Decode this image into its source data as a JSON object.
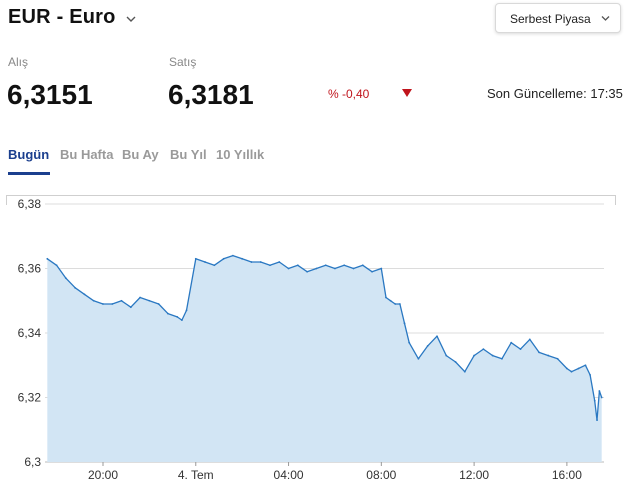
{
  "header": {
    "title": "EUR - Euro",
    "market_selector": "Serbest Piyasa"
  },
  "quote": {
    "buy_label": "Alış",
    "buy_value": "6,3151",
    "sell_label": "Satış",
    "sell_value": "6,3181",
    "change": "% -0,40",
    "direction": "down",
    "updated": "Son Güncelleme: 17:35"
  },
  "tabs": [
    "Bugün",
    "Bu Hafta",
    "Bu Ay",
    "Bu Yıl",
    "10 Yıllık"
  ],
  "active_tab": "Bugün",
  "colors": {
    "accent": "#1b3f8e",
    "line": "#2a78c2",
    "fill": "#d2e5f4",
    "negative": "#c0141c"
  },
  "chart_data": {
    "type": "area",
    "title": "",
    "xlabel": "",
    "ylabel": "",
    "ylim": [
      6.3,
      6.38
    ],
    "yticks": [
      6.38,
      6.36,
      6.34,
      6.32,
      6.3
    ],
    "ytick_labels": [
      "6,38",
      "6,36",
      "6,34",
      "6,32",
      "6,3"
    ],
    "xtick_labels": [
      "20:00",
      "4. Tem",
      "04:00",
      "08:00",
      "12:00",
      "16:00"
    ],
    "xtick_hours": [
      20,
      24,
      28,
      32,
      36,
      40
    ],
    "xlim_hours": [
      17.5,
      41.6
    ],
    "grid": true,
    "series": [
      {
        "x": [
          17.6,
          18.0,
          18.4,
          18.8,
          19.2,
          19.6,
          20.0,
          20.4,
          20.8,
          21.2,
          21.6,
          22.0,
          22.4,
          22.8,
          23.2,
          23.4,
          23.6,
          24.0,
          24.4,
          24.8,
          25.2,
          25.6,
          26.0,
          26.4,
          26.8,
          27.2,
          27.6,
          28.0,
          28.4,
          28.8,
          29.2,
          29.6,
          30.0,
          30.4,
          30.8,
          31.2,
          31.6,
          32.0,
          32.2,
          32.4,
          32.6,
          32.8,
          33.0,
          33.2,
          33.6,
          34.0,
          34.4,
          34.8,
          35.2,
          35.6,
          36.0,
          36.4,
          36.8,
          37.2,
          37.6,
          38.0,
          38.4,
          38.8,
          39.2,
          39.6,
          40.0,
          40.2,
          40.5,
          40.8,
          41.0,
          41.2,
          41.3,
          41.4,
          41.5
        ],
        "y": [
          6.363,
          6.361,
          6.357,
          6.354,
          6.352,
          6.35,
          6.349,
          6.349,
          6.35,
          6.348,
          6.351,
          6.35,
          6.349,
          6.346,
          6.345,
          6.344,
          6.347,
          6.363,
          6.362,
          6.361,
          6.363,
          6.364,
          6.363,
          6.362,
          6.362,
          6.361,
          6.362,
          6.36,
          6.361,
          6.359,
          6.36,
          6.361,
          6.36,
          6.361,
          6.36,
          6.361,
          6.359,
          6.36,
          6.351,
          6.35,
          6.349,
          6.349,
          6.343,
          6.337,
          6.332,
          6.336,
          6.339,
          6.333,
          6.331,
          6.328,
          6.333,
          6.335,
          6.333,
          6.332,
          6.337,
          6.335,
          6.338,
          6.334,
          6.333,
          6.332,
          6.329,
          6.328,
          6.329,
          6.33,
          6.327,
          6.319,
          6.313,
          6.322,
          6.32
        ]
      }
    ]
  }
}
